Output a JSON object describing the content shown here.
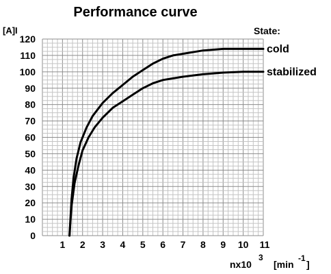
{
  "chart_data": {
    "type": "line",
    "title": "Performance curve",
    "ylabel": "[A]I",
    "xlabel": {
      "base": "nx10",
      "exp": "3",
      "unit": "[min",
      "unit_exp": "-1",
      "close": "]"
    },
    "legend_title": "State:",
    "xlim": [
      0,
      11
    ],
    "ylim": [
      0,
      120
    ],
    "x_ticks": [
      1,
      2,
      3,
      4,
      5,
      6,
      7,
      8,
      9,
      10,
      11
    ],
    "y_ticks": [
      0,
      10,
      20,
      30,
      40,
      50,
      60,
      70,
      80,
      90,
      100,
      110,
      120
    ],
    "grid": true,
    "series": [
      {
        "name": "cold",
        "x": [
          1.35,
          1.45,
          1.55,
          1.7,
          1.9,
          2.2,
          2.5,
          3.0,
          3.5,
          4.0,
          4.5,
          5.0,
          5.5,
          6.0,
          6.5,
          7.0,
          8.0,
          9.0,
          10.0,
          11.0
        ],
        "y": [
          0,
          22,
          35,
          47,
          57,
          66,
          73,
          81,
          87,
          92,
          97,
          101,
          105,
          108,
          110,
          111,
          113,
          114,
          114,
          114
        ]
      },
      {
        "name": "stabilized",
        "x": [
          1.35,
          1.45,
          1.6,
          1.8,
          2.0,
          2.3,
          2.6,
          3.0,
          3.5,
          4.0,
          4.5,
          5.0,
          5.5,
          6.0,
          6.5,
          7.0,
          8.0,
          9.0,
          10.0,
          11.0
        ],
        "y": [
          0,
          18,
          32,
          43,
          52,
          60,
          66,
          72,
          78,
          82,
          86,
          90,
          93,
          95,
          96,
          97,
          98.5,
          99.5,
          100,
          100
        ]
      }
    ]
  }
}
